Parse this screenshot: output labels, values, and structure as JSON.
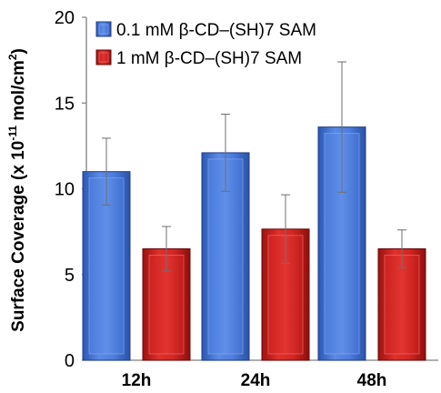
{
  "chart_data": {
    "type": "bar",
    "categories": [
      "12h",
      "24h",
      "48h"
    ],
    "series": [
      {
        "name": "0.1 mM β-CD–(SH)7 SAM",
        "values": [
          11.0,
          12.1,
          13.6
        ],
        "error": [
          1.95,
          2.25,
          3.8
        ],
        "color": "#3f6fd3"
      },
      {
        "name": "1 mM β-CD–(SH)7 SAM",
        "values": [
          6.5,
          7.65,
          6.5
        ],
        "error": [
          1.3,
          2.0,
          1.1
        ],
        "color": "#c41a18"
      }
    ],
    "ylabel_main": "Surface Coverage (x 10",
    "ylabel_exp": "-11",
    "ylabel_unit": " mol/cm",
    "ylabel_unit_exp": "2",
    "ylabel_close": ")",
    "ylim": [
      0,
      20
    ],
    "yticks": [
      0,
      5,
      10,
      15,
      20
    ],
    "grid": false,
    "legend_position": "top-left"
  }
}
